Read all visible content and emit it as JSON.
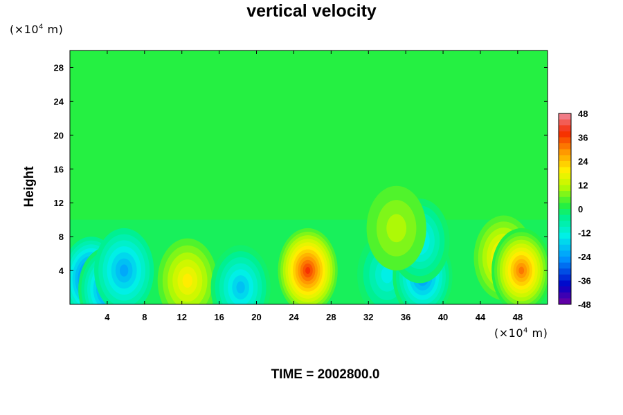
{
  "chart_data": {
    "type": "heatmap",
    "title": "vertical velocity",
    "ylabel": "Height",
    "x_unit_prefix": "(×10",
    "x_unit_exp": "4",
    "x_unit_suffix": " m)",
    "y_unit_prefix": "(×10",
    "y_unit_exp": "4",
    "y_unit_suffix": " m)",
    "xlim": [
      0,
      51.2
    ],
    "ylim": [
      0,
      30
    ],
    "x_ticks": [
      4,
      8,
      12,
      16,
      20,
      24,
      28,
      32,
      36,
      40,
      44,
      48
    ],
    "y_ticks": [
      4,
      8,
      12,
      16,
      20,
      24,
      28
    ],
    "colorbar_ticks": [
      48,
      36,
      24,
      12,
      0,
      -12,
      -24,
      -36,
      -48
    ],
    "colorbar_range": [
      -48,
      48
    ],
    "colorbar_levels": 32,
    "features": [
      {
        "x": 2.3,
        "y": 3.0,
        "value": -34
      },
      {
        "x": 4.1,
        "y": 1.8,
        "value": -30
      },
      {
        "x": 5.8,
        "y": 4.0,
        "value": -22
      },
      {
        "x": 12.6,
        "y": 2.8,
        "value": 18
      },
      {
        "x": 18.3,
        "y": 2.0,
        "value": -20
      },
      {
        "x": 25.5,
        "y": 4.0,
        "value": 36
      },
      {
        "x": 34.0,
        "y": 3.5,
        "value": -14
      },
      {
        "x": 37.8,
        "y": 3.3,
        "value": -26
      },
      {
        "x": 37.5,
        "y": 7.5,
        "value": -18
      },
      {
        "x": 35.0,
        "y": 9.0,
        "value": 9
      },
      {
        "x": 46.5,
        "y": 5.5,
        "value": 22
      },
      {
        "x": 48.4,
        "y": 4.0,
        "value": 32
      }
    ]
  },
  "footer": {
    "time_label": "TIME = 2002800.0"
  }
}
